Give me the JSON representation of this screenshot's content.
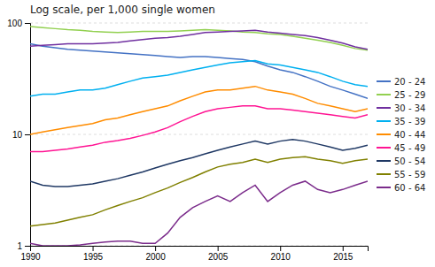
{
  "chart_data": {
    "type": "line",
    "title": "Log scale, per 1,000 single women",
    "x": [
      1990,
      1991,
      1992,
      1993,
      1994,
      1995,
      1996,
      1997,
      1998,
      1999,
      2000,
      2001,
      2002,
      2003,
      2004,
      2005,
      2006,
      2007,
      2008,
      2009,
      2010,
      2011,
      2012,
      2013,
      2014,
      2015,
      2016,
      2017
    ],
    "series": [
      {
        "name": "20 - 24",
        "color": "#4472C4",
        "values": [
          65,
          62,
          60,
          58,
          57,
          56,
          55,
          54,
          53,
          52,
          51,
          50,
          49,
          50,
          50,
          49,
          48,
          47,
          45,
          41,
          38,
          36,
          33,
          30,
          27,
          25,
          23,
          21
        ]
      },
      {
        "name": "25 - 29",
        "color": "#92D050",
        "values": [
          93,
          91,
          89,
          87,
          86,
          84,
          83,
          82,
          83,
          84,
          84,
          84,
          85,
          86,
          87,
          86,
          85,
          83,
          82,
          80,
          79,
          76,
          73,
          70,
          67,
          63,
          59,
          57
        ]
      },
      {
        "name": "30 - 34",
        "color": "#7030A0",
        "values": [
          62,
          63,
          64,
          65,
          65,
          65,
          66,
          67,
          69,
          71,
          73,
          74,
          76,
          79,
          82,
          83,
          84,
          85,
          86,
          83,
          81,
          79,
          77,
          74,
          70,
          66,
          61,
          58
        ]
      },
      {
        "name": "35 - 39",
        "color": "#00B0F0",
        "values": [
          22,
          23,
          23,
          24,
          25,
          25,
          26,
          28,
          30,
          32,
          33,
          34,
          36,
          38,
          40,
          42,
          44,
          45,
          46,
          43,
          42,
          40,
          38,
          36,
          33,
          30,
          28,
          27
        ]
      },
      {
        "name": "40 - 44",
        "color": "#FF8C00",
        "values": [
          10,
          10.5,
          11,
          11.5,
          12,
          12.5,
          13.5,
          14,
          15,
          16,
          17,
          18,
          20,
          22,
          24,
          25,
          25,
          26,
          27,
          25,
          24,
          23,
          21,
          19,
          18,
          17,
          16,
          17
        ]
      },
      {
        "name": "45 - 49",
        "color": "#FF1493",
        "values": [
          7,
          7.0,
          7.2,
          7.4,
          7.7,
          8.0,
          8.5,
          8.8,
          9.2,
          9.8,
          10.5,
          11.5,
          13,
          14.5,
          16,
          17,
          17.5,
          18,
          18,
          17,
          17,
          16.5,
          16,
          15.5,
          15,
          14.5,
          14,
          15
        ]
      },
      {
        "name": "50 - 54",
        "color": "#1F3864",
        "values": [
          3.8,
          3.5,
          3.4,
          3.4,
          3.5,
          3.6,
          3.8,
          4.0,
          4.3,
          4.6,
          5.0,
          5.4,
          5.8,
          6.2,
          6.7,
          7.2,
          7.7,
          8.2,
          8.7,
          8.2,
          8.7,
          9.0,
          8.7,
          8.2,
          7.7,
          7.2,
          7.5,
          8.0
        ]
      },
      {
        "name": "55 - 59",
        "color": "#808000",
        "values": [
          1.5,
          1.55,
          1.6,
          1.7,
          1.8,
          1.9,
          2.1,
          2.3,
          2.5,
          2.7,
          3.0,
          3.3,
          3.7,
          4.1,
          4.6,
          5.1,
          5.4,
          5.6,
          6.0,
          5.6,
          6.0,
          6.2,
          6.3,
          6.0,
          5.8,
          5.5,
          5.8,
          6.0
        ]
      },
      {
        "name": "60 - 64",
        "color": "#7B2C8B",
        "values": [
          1.05,
          1.0,
          1.0,
          1.0,
          1.02,
          1.05,
          1.08,
          1.1,
          1.1,
          1.05,
          1.05,
          1.3,
          1.8,
          2.2,
          2.5,
          2.8,
          2.5,
          3.0,
          3.5,
          2.5,
          3.0,
          3.5,
          3.8,
          3.2,
          3.0,
          3.2,
          3.5,
          3.8
        ]
      }
    ],
    "xlim": [
      1990,
      2017
    ],
    "xticks": [
      1990,
      1995,
      2000,
      2005,
      2010,
      2015
    ],
    "ylim": [
      1,
      100
    ],
    "yticks": [
      1,
      10,
      100
    ],
    "log": "y",
    "grid": true,
    "legend": "right"
  }
}
